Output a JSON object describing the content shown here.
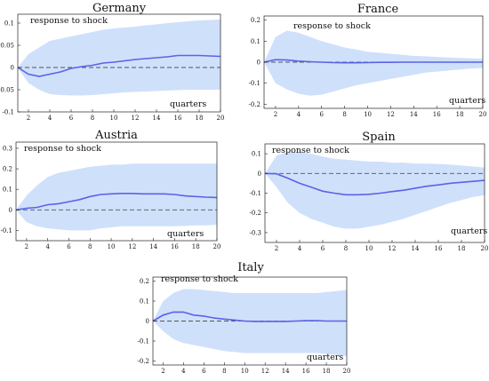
{
  "chart_data": [
    {
      "type": "line",
      "title": "Germany",
      "ylabel": "response to shock",
      "xlabel": "quarters",
      "x": [
        1,
        2,
        3,
        4,
        5,
        6,
        7,
        8,
        9,
        10,
        11,
        12,
        13,
        14,
        15,
        16,
        17,
        18,
        19,
        20
      ],
      "xticks": [
        2,
        4,
        6,
        8,
        10,
        12,
        14,
        16,
        18,
        20
      ],
      "yticks": [
        -0.1,
        -0.05,
        0,
        0.05,
        0.1
      ],
      "ytick_labels": [
        "-0.1",
        "-0.05",
        "0",
        "0.05",
        "0.1"
      ],
      "xlim": [
        1,
        20
      ],
      "ylim": [
        -0.1,
        0.12
      ],
      "series": [
        {
          "values": [
            0,
            -0.015,
            -0.02,
            -0.015,
            -0.01,
            -0.002,
            0.002,
            0.005,
            0.01,
            0.012,
            0.015,
            0.018,
            0.02,
            0.022,
            0.024,
            0.027,
            0.027,
            0.027,
            0.026,
            0.025
          ]
        }
      ],
      "band_upper": [
        0,
        0.03,
        0.045,
        0.06,
        0.065,
        0.07,
        0.075,
        0.08,
        0.085,
        0.088,
        0.09,
        0.092,
        0.095,
        0.097,
        0.1,
        0.102,
        0.104,
        0.106,
        0.107,
        0.108
      ],
      "band_lower": [
        0,
        -0.035,
        -0.05,
        -0.06,
        -0.062,
        -0.063,
        -0.063,
        -0.062,
        -0.06,
        -0.058,
        -0.056,
        -0.055,
        -0.054,
        -0.053,
        -0.052,
        -0.051,
        -0.05,
        -0.05,
        -0.05,
        -0.05
      ],
      "zero_line": true,
      "grid": false
    },
    {
      "type": "line",
      "title": "France",
      "ylabel": "response to shock",
      "xlabel": "quarters",
      "x": [
        1,
        2,
        3,
        4,
        5,
        6,
        7,
        8,
        9,
        10,
        11,
        12,
        13,
        14,
        15,
        16,
        17,
        18,
        19,
        20
      ],
      "xticks": [
        2,
        4,
        6,
        8,
        10,
        12,
        14,
        16,
        18,
        20
      ],
      "yticks": [
        -0.2,
        -0.1,
        0,
        0.1,
        0.2
      ],
      "ytick_labels": [
        "-0.2",
        "-0.1",
        "0",
        "0.1",
        "0.2"
      ],
      "xlim": [
        1,
        20
      ],
      "ylim": [
        -0.22,
        0.22
      ],
      "series": [
        {
          "values": [
            0,
            0.012,
            0.01,
            0.005,
            0.002,
            0,
            -0.002,
            -0.003,
            -0.003,
            -0.002,
            -0.001,
            -0.001,
            0,
            0,
            0,
            0,
            0,
            0,
            0,
            0
          ]
        }
      ],
      "band_upper": [
        0,
        0.12,
        0.15,
        0.14,
        0.12,
        0.1,
        0.085,
        0.07,
        0.06,
        0.05,
        0.045,
        0.04,
        0.035,
        0.03,
        0.028,
        0.025,
        0.022,
        0.02,
        0.018,
        0.016
      ],
      "band_lower": [
        0,
        -0.1,
        -0.13,
        -0.15,
        -0.16,
        -0.155,
        -0.14,
        -0.125,
        -0.11,
        -0.1,
        -0.09,
        -0.08,
        -0.07,
        -0.06,
        -0.05,
        -0.045,
        -0.04,
        -0.035,
        -0.03,
        -0.028
      ],
      "zero_line": true,
      "grid": false
    },
    {
      "type": "line",
      "title": "Austria",
      "ylabel": "response to shock",
      "xlabel": "quarters",
      "x": [
        1,
        2,
        3,
        4,
        5,
        6,
        7,
        8,
        9,
        10,
        11,
        12,
        13,
        14,
        15,
        16,
        17,
        18,
        19,
        20
      ],
      "xticks": [
        2,
        4,
        6,
        8,
        10,
        12,
        14,
        16,
        18,
        20
      ],
      "yticks": [
        -0.1,
        0,
        0.1,
        0.2,
        0.3
      ],
      "ytick_labels": [
        "-0.1",
        "0",
        "0.1",
        "0.2",
        "0.3"
      ],
      "xlim": [
        1,
        20
      ],
      "ylim": [
        -0.15,
        0.33
      ],
      "series": [
        {
          "values": [
            0,
            0.008,
            0.012,
            0.025,
            0.03,
            0.04,
            0.05,
            0.065,
            0.075,
            0.078,
            0.08,
            0.08,
            0.078,
            0.078,
            0.078,
            0.075,
            0.068,
            0.065,
            0.062,
            0.06
          ]
        }
      ],
      "band_upper": [
        0,
        0.07,
        0.12,
        0.16,
        0.18,
        0.19,
        0.2,
        0.21,
        0.215,
        0.22,
        0.22,
        0.225,
        0.225,
        0.225,
        0.225,
        0.225,
        0.225,
        0.225,
        0.225,
        0.225
      ],
      "band_lower": [
        0,
        -0.06,
        -0.08,
        -0.09,
        -0.095,
        -0.1,
        -0.1,
        -0.1,
        -0.09,
        -0.085,
        -0.08,
        -0.08,
        -0.08,
        -0.08,
        -0.08,
        -0.08,
        -0.078,
        -0.075,
        -0.075,
        -0.072
      ],
      "zero_line": true,
      "grid": false
    },
    {
      "type": "line",
      "title": "Spain",
      "ylabel": "response to shock",
      "xlabel": "quarters",
      "x": [
        1,
        2,
        3,
        4,
        5,
        6,
        7,
        8,
        9,
        10,
        11,
        12,
        13,
        14,
        15,
        16,
        17,
        18,
        19,
        20
      ],
      "xticks": [
        2,
        4,
        6,
        8,
        10,
        12,
        14,
        16,
        18,
        20
      ],
      "yticks": [
        -0.3,
        -0.2,
        -0.1,
        0,
        0.1
      ],
      "ytick_labels": [
        "-0.3",
        "-0.2",
        "-0.1",
        "0",
        "0.1"
      ],
      "xlim": [
        1,
        20
      ],
      "ylim": [
        -0.35,
        0.15
      ],
      "series": [
        {
          "values": [
            0,
            -0.002,
            -0.025,
            -0.05,
            -0.07,
            -0.09,
            -0.1,
            -0.108,
            -0.108,
            -0.106,
            -0.1,
            -0.092,
            -0.085,
            -0.075,
            -0.065,
            -0.058,
            -0.05,
            -0.045,
            -0.04,
            -0.035
          ]
        }
      ],
      "band_upper": [
        0,
        0.09,
        0.11,
        0.11,
        0.1,
        0.085,
        0.075,
        0.07,
        0.065,
        0.06,
        0.06,
        0.055,
        0.055,
        0.05,
        0.05,
        0.048,
        0.045,
        0.04,
        0.035,
        0.03
      ],
      "band_lower": [
        0,
        -0.07,
        -0.15,
        -0.2,
        -0.23,
        -0.25,
        -0.27,
        -0.28,
        -0.28,
        -0.27,
        -0.26,
        -0.245,
        -0.23,
        -0.21,
        -0.19,
        -0.17,
        -0.15,
        -0.135,
        -0.12,
        -0.11
      ],
      "zero_line": true,
      "grid": false
    },
    {
      "type": "line",
      "title": "Italy",
      "ylabel": "response to shock",
      "xlabel": "quarters",
      "x": [
        1,
        2,
        3,
        4,
        5,
        6,
        7,
        8,
        9,
        10,
        11,
        12,
        13,
        14,
        15,
        16,
        17,
        18,
        19,
        20
      ],
      "xticks": [
        2,
        4,
        6,
        8,
        10,
        12,
        14,
        16,
        18,
        20
      ],
      "yticks": [
        -0.2,
        -0.1,
        0,
        0.1,
        0.2
      ],
      "ytick_labels": [
        "-0.2",
        "-0.1",
        "0",
        "0.1",
        "0.2"
      ],
      "xlim": [
        1,
        20
      ],
      "ylim": [
        -0.22,
        0.22
      ],
      "series": [
        {
          "values": [
            0,
            0.03,
            0.045,
            0.045,
            0.03,
            0.025,
            0.015,
            0.01,
            0.005,
            0,
            -0.002,
            -0.002,
            -0.002,
            -0.002,
            0,
            0.002,
            0.002,
            0,
            0,
            0
          ]
        }
      ],
      "band_upper": [
        0,
        0.1,
        0.14,
        0.16,
        0.16,
        0.155,
        0.15,
        0.145,
        0.14,
        0.14,
        0.14,
        0.14,
        0.14,
        0.14,
        0.14,
        0.14,
        0.14,
        0.145,
        0.15,
        0.155
      ],
      "band_lower": [
        0,
        -0.05,
        -0.09,
        -0.11,
        -0.12,
        -0.13,
        -0.14,
        -0.15,
        -0.155,
        -0.16,
        -0.16,
        -0.16,
        -0.16,
        -0.16,
        -0.16,
        -0.16,
        -0.16,
        -0.165,
        -0.17,
        -0.175
      ],
      "zero_line": true,
      "grid": false
    }
  ]
}
